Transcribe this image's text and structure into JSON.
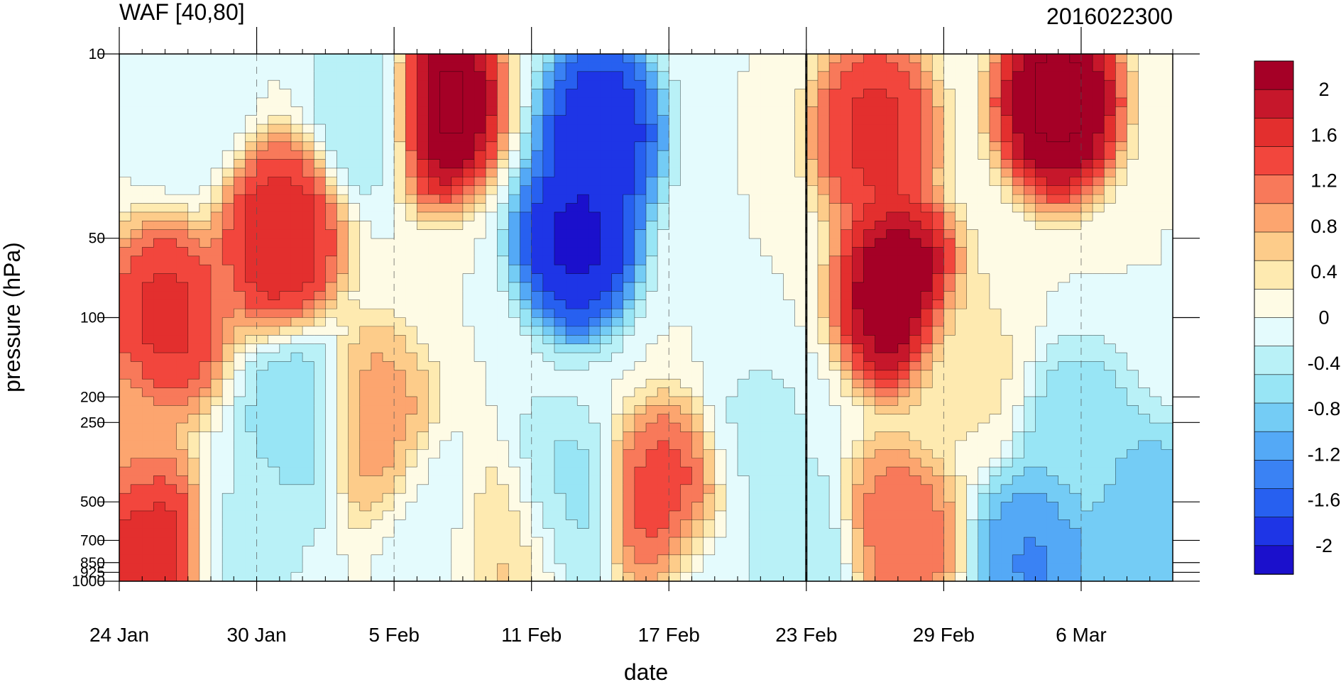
{
  "chart_data": {
    "type": "heatmap",
    "title_left": "WAF [40,80]",
    "title_right": "2016022300",
    "xlabel": "date",
    "ylabel": "pressure (hPa)",
    "y_scale": "log",
    "ylim": [
      1000,
      10
    ],
    "x_range": [
      "2016-01-24",
      "2016-03-10"
    ],
    "x_ticks": [
      {
        "date": "2016-01-24",
        "label": "24 Jan"
      },
      {
        "date": "2016-01-30",
        "label": "30 Jan"
      },
      {
        "date": "2016-02-05",
        "label": "5 Feb"
      },
      {
        "date": "2016-02-11",
        "label": "11 Feb"
      },
      {
        "date": "2016-02-17",
        "label": "17 Feb"
      },
      {
        "date": "2016-02-23",
        "label": "23 Feb"
      },
      {
        "date": "2016-02-29",
        "label": "29 Feb"
      },
      {
        "date": "2016-03-06",
        "label": "6 Mar"
      }
    ],
    "y_ticks": [
      {
        "value": 10,
        "label": "10"
      },
      {
        "value": 50,
        "label": "50"
      },
      {
        "value": 100,
        "label": "100"
      },
      {
        "value": 200,
        "label": "200"
      },
      {
        "value": 250,
        "label": "250"
      },
      {
        "value": 500,
        "label": "500"
      },
      {
        "value": 700,
        "label": "700"
      },
      {
        "value": 850,
        "label": "850"
      },
      {
        "value": 925,
        "label": "925"
      },
      {
        "value": 1000,
        "label": "1000"
      }
    ],
    "reference_line_date": "2016-02-23",
    "colorbar": {
      "labels": [
        "2",
        "1.6",
        "1.2",
        "0.8",
        "0.4",
        "0",
        "-0.4",
        "-0.8",
        "-1.2",
        "-1.6",
        "-2"
      ],
      "colors": [
        "#a50026",
        "#c6172b",
        "#e32f2e",
        "#f2463d",
        "#f8795a",
        "#fca56f",
        "#fdcc8a",
        "#feeab0",
        "#fefbe5",
        "#e4fbfd",
        "#b9f1f7",
        "#98e5f5",
        "#74ccf5",
        "#54a9f6",
        "#3a82f4",
        "#2760f0",
        "#1e35e6",
        "#1b10cc"
      ],
      "range": [
        -2.2,
        2.2
      ]
    },
    "features": [
      {
        "date": "2016-01-26",
        "pressure": 100,
        "value": 1.6
      },
      {
        "date": "2016-01-25",
        "pressure": 700,
        "value": 1.7
      },
      {
        "date": "2016-01-31",
        "pressure": 50,
        "value": 1.7
      },
      {
        "date": "2016-02-07",
        "pressure": 15,
        "value": 2.4
      },
      {
        "date": "2016-02-13",
        "pressure": 50,
        "value": -2.1
      },
      {
        "date": "2016-02-14",
        "pressure": 20,
        "value": -2.0
      },
      {
        "date": "2016-02-17",
        "pressure": 500,
        "value": 1.4
      },
      {
        "date": "2016-02-27",
        "pressure": 80,
        "value": 2.3
      },
      {
        "date": "2016-03-05",
        "pressure": 15,
        "value": 2.4
      },
      {
        "date": "2016-02-26",
        "pressure": 20,
        "value": 1.6
      },
      {
        "date": "2016-02-01",
        "pressure": 250,
        "value": -0.7
      },
      {
        "date": "2016-02-04",
        "pressure": 250,
        "value": 0.9
      },
      {
        "date": "2016-02-12",
        "pressure": 500,
        "value": -0.6
      },
      {
        "date": "2016-02-10",
        "pressure": 700,
        "value": 0.6
      },
      {
        "date": "2016-02-27",
        "pressure": 700,
        "value": 1.2
      },
      {
        "date": "2016-03-04",
        "pressure": 850,
        "value": -1.3
      },
      {
        "date": "2016-03-09",
        "pressure": 600,
        "value": -1.0
      },
      {
        "date": "2016-03-06",
        "pressure": 300,
        "value": -0.7
      },
      {
        "date": "2016-02-04",
        "pressure": 15,
        "value": -0.5
      },
      {
        "date": "2016-01-27",
        "pressure": 15,
        "value": -0.2
      },
      {
        "date": "2016-02-21",
        "pressure": 300,
        "value": -0.3
      },
      {
        "date": "2016-02-07",
        "pressure": 600,
        "value": -0.1
      },
      {
        "date": "2016-02-19",
        "pressure": 1000,
        "value": -0.2
      },
      {
        "date": "2016-01-30",
        "pressure": 700,
        "value": -0.3
      },
      {
        "date": "2016-02-23",
        "pressure": 900,
        "value": -0.5
      },
      {
        "date": "2016-03-01",
        "pressure": 150,
        "value": 0.3
      },
      {
        "date": "2016-01-24",
        "pressure": 300,
        "value": 0.9
      }
    ]
  }
}
